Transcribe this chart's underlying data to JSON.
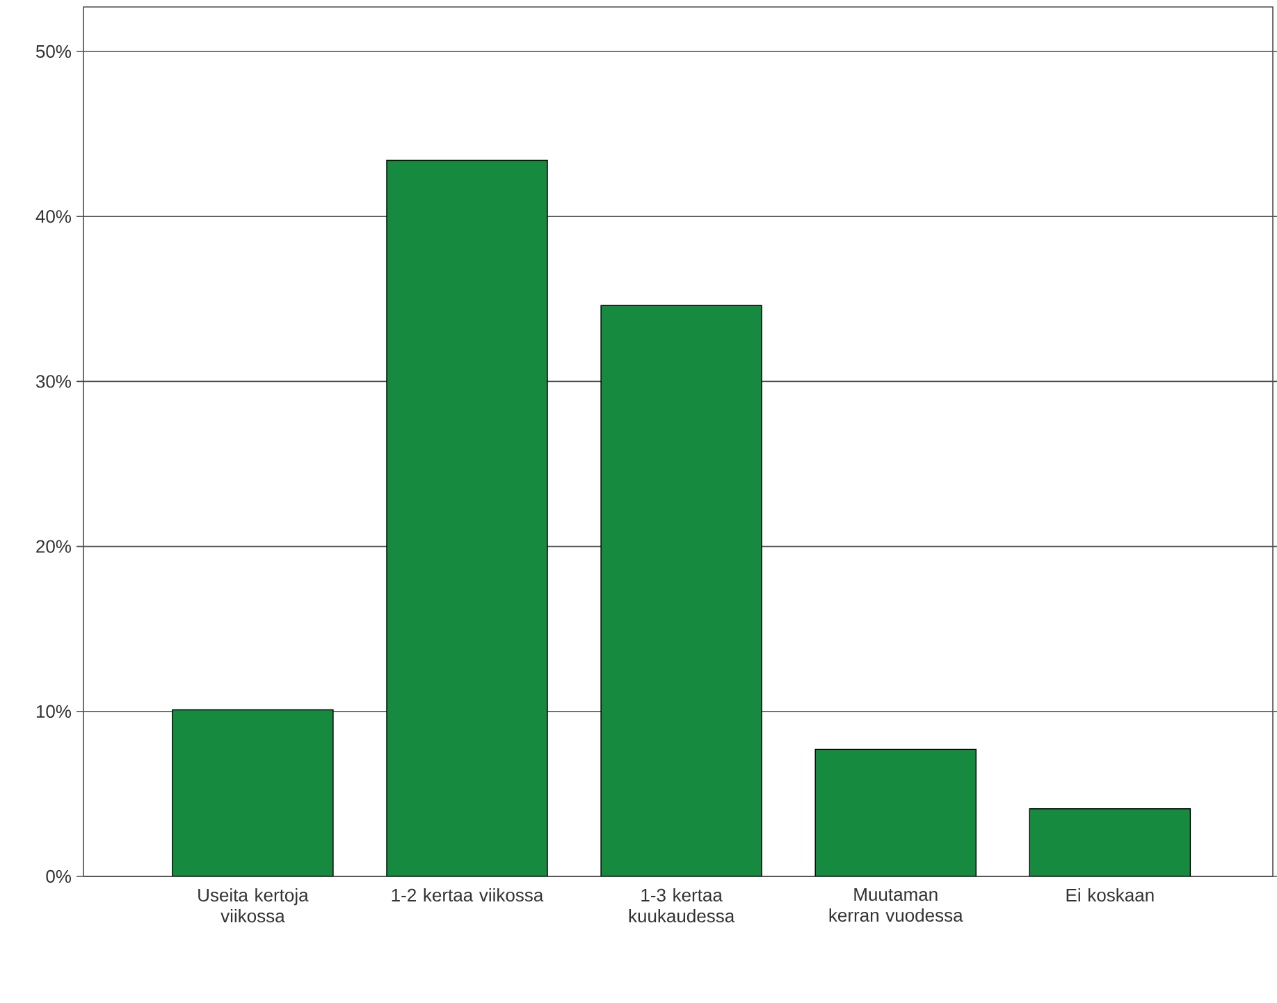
{
  "chart_data": {
    "type": "bar",
    "categories": [
      "Useita kertoja viikossa",
      "1-2 kertaa viikossa",
      "1-3 kertaa kuukaudessa",
      "Muutaman kerran vuodessa",
      "Ei koskaan"
    ],
    "values": [
      10.1,
      43.4,
      34.6,
      7.7,
      4.1
    ],
    "color": "#168a3e",
    "ylim": [
      0,
      52.7
    ],
    "yticks": [
      {
        "value": 0,
        "label": "0%"
      },
      {
        "value": 10,
        "label": "10%"
      },
      {
        "value": 20,
        "label": "20%"
      },
      {
        "value": 30,
        "label": "30%"
      },
      {
        "value": 40,
        "label": "40%"
      },
      {
        "value": 50,
        "label": "50%"
      }
    ],
    "grid": "y"
  }
}
